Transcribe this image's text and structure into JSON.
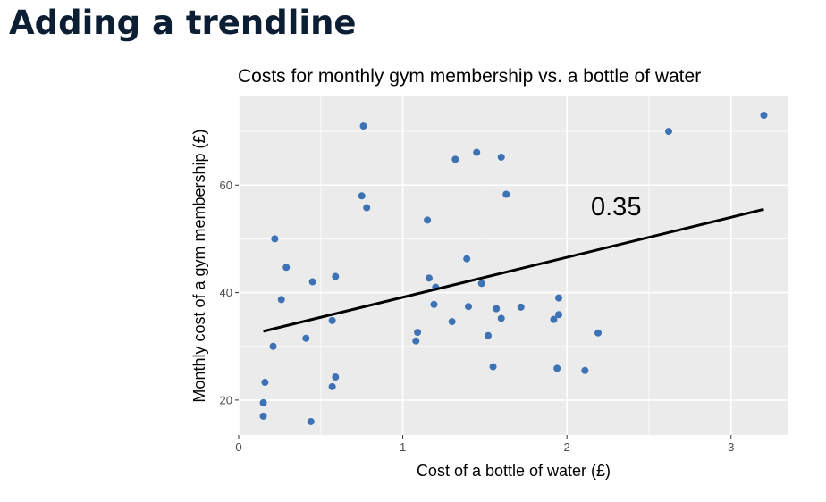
{
  "page": {
    "heading": "Adding a trendline"
  },
  "chart_data": {
    "type": "scatter",
    "title": "Costs for monthly gym membership vs. a bottle of water",
    "xlabel": "Cost of a bottle of water (£)",
    "ylabel": "Monthly cost of a gym membership (£)",
    "xlim": [
      0,
      3.35
    ],
    "ylim": [
      13.5,
      76.5
    ],
    "x_ticks": [
      0,
      1,
      2,
      3
    ],
    "y_ticks": [
      20,
      40,
      60
    ],
    "x_tick_labels": [
      "0",
      "1",
      "2",
      "3"
    ],
    "y_tick_labels": [
      "20",
      "40",
      "60"
    ],
    "grid": true,
    "point_color": "#3d72b4",
    "panel_color": "#ebebeb",
    "points": [
      {
        "x": 0.15,
        "y": 17.0
      },
      {
        "x": 0.15,
        "y": 19.5
      },
      {
        "x": 0.16,
        "y": 23.3
      },
      {
        "x": 0.21,
        "y": 30.0
      },
      {
        "x": 0.22,
        "y": 50.0
      },
      {
        "x": 0.26,
        "y": 38.7
      },
      {
        "x": 0.29,
        "y": 44.7
      },
      {
        "x": 0.41,
        "y": 31.5
      },
      {
        "x": 0.44,
        "y": 16.0
      },
      {
        "x": 0.45,
        "y": 42.0
      },
      {
        "x": 0.57,
        "y": 22.5
      },
      {
        "x": 0.57,
        "y": 34.8
      },
      {
        "x": 0.59,
        "y": 24.3
      },
      {
        "x": 0.59,
        "y": 43.0
      },
      {
        "x": 0.75,
        "y": 58.0
      },
      {
        "x": 0.76,
        "y": 71.0
      },
      {
        "x": 0.78,
        "y": 55.8
      },
      {
        "x": 1.08,
        "y": 31.0
      },
      {
        "x": 1.09,
        "y": 32.6
      },
      {
        "x": 1.15,
        "y": 53.5
      },
      {
        "x": 1.16,
        "y": 42.7
      },
      {
        "x": 1.19,
        "y": 37.8
      },
      {
        "x": 1.2,
        "y": 41.0
      },
      {
        "x": 1.3,
        "y": 34.6
      },
      {
        "x": 1.32,
        "y": 64.8
      },
      {
        "x": 1.39,
        "y": 46.3
      },
      {
        "x": 1.4,
        "y": 37.4
      },
      {
        "x": 1.45,
        "y": 66.1
      },
      {
        "x": 1.48,
        "y": 41.7
      },
      {
        "x": 1.52,
        "y": 32.0
      },
      {
        "x": 1.55,
        "y": 26.2
      },
      {
        "x": 1.57,
        "y": 37.0
      },
      {
        "x": 1.6,
        "y": 35.2
      },
      {
        "x": 1.6,
        "y": 65.2
      },
      {
        "x": 1.63,
        "y": 58.3
      },
      {
        "x": 1.72,
        "y": 37.3
      },
      {
        "x": 1.92,
        "y": 35.0
      },
      {
        "x": 1.94,
        "y": 25.9
      },
      {
        "x": 1.95,
        "y": 39.0
      },
      {
        "x": 1.95,
        "y": 35.9
      },
      {
        "x": 2.11,
        "y": 25.5
      },
      {
        "x": 2.19,
        "y": 32.5
      },
      {
        "x": 2.62,
        "y": 70.0
      },
      {
        "x": 3.2,
        "y": 73.0
      }
    ],
    "trendline": {
      "x": [
        0.15,
        3.2
      ],
      "y": [
        32.8,
        55.5
      ],
      "color": "#000000"
    },
    "annotation": {
      "text": "0.35",
      "x": 2.3,
      "y": 54.4
    }
  }
}
